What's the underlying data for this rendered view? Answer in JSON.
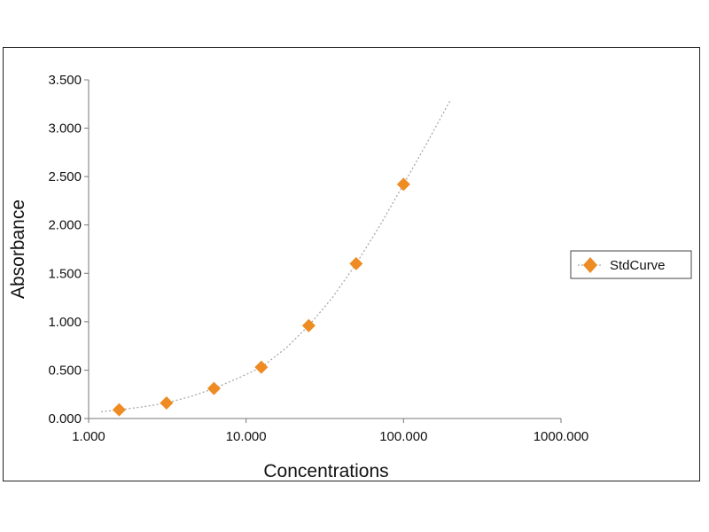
{
  "chart_data": {
    "type": "scatter",
    "title": "",
    "xlabel": "Concentrations",
    "ylabel": "Absorbance",
    "x_scale": "log",
    "xlim": [
      1,
      1000
    ],
    "ylim": [
      0,
      3.5
    ],
    "x_ticks": [
      {
        "value": 1,
        "label": "1.000"
      },
      {
        "value": 10,
        "label": "10.000"
      },
      {
        "value": 100,
        "label": "100.000"
      },
      {
        "value": 1000,
        "label": "1000.000"
      }
    ],
    "y_ticks": [
      {
        "value": 0,
        "label": "0.000"
      },
      {
        "value": 0.5,
        "label": "0.500"
      },
      {
        "value": 1,
        "label": "1.000"
      },
      {
        "value": 1.5,
        "label": "1.500"
      },
      {
        "value": 2,
        "label": "2.000"
      },
      {
        "value": 2.5,
        "label": "2.500"
      },
      {
        "value": 3,
        "label": "3.000"
      },
      {
        "value": 3.5,
        "label": "3.500"
      }
    ],
    "grid": false,
    "legend_position": "right",
    "series": [
      {
        "name": "StdCurve",
        "marker": "diamond",
        "color": "#ee8b22",
        "points": [
          {
            "x": 1.5625,
            "y": 0.09
          },
          {
            "x": 3.125,
            "y": 0.16
          },
          {
            "x": 6.25,
            "y": 0.31
          },
          {
            "x": 12.5,
            "y": 0.53
          },
          {
            "x": 25,
            "y": 0.96
          },
          {
            "x": 50,
            "y": 1.6
          },
          {
            "x": 100,
            "y": 2.42
          }
        ]
      }
    ],
    "fit_curve": {
      "style": "dotted",
      "color": "#a8a8a8",
      "points": [
        {
          "x": 1.2,
          "y": 0.07
        },
        {
          "x": 1.5625,
          "y": 0.09
        },
        {
          "x": 2.2,
          "y": 0.12
        },
        {
          "x": 3.125,
          "y": 0.16
        },
        {
          "x": 4.5,
          "y": 0.23
        },
        {
          "x": 6.25,
          "y": 0.31
        },
        {
          "x": 9,
          "y": 0.42
        },
        {
          "x": 12.5,
          "y": 0.53
        },
        {
          "x": 18,
          "y": 0.73
        },
        {
          "x": 25,
          "y": 0.96
        },
        {
          "x": 35,
          "y": 1.24
        },
        {
          "x": 50,
          "y": 1.6
        },
        {
          "x": 70,
          "y": 1.98
        },
        {
          "x": 100,
          "y": 2.42
        },
        {
          "x": 140,
          "y": 2.84
        },
        {
          "x": 200,
          "y": 3.3
        }
      ]
    }
  }
}
